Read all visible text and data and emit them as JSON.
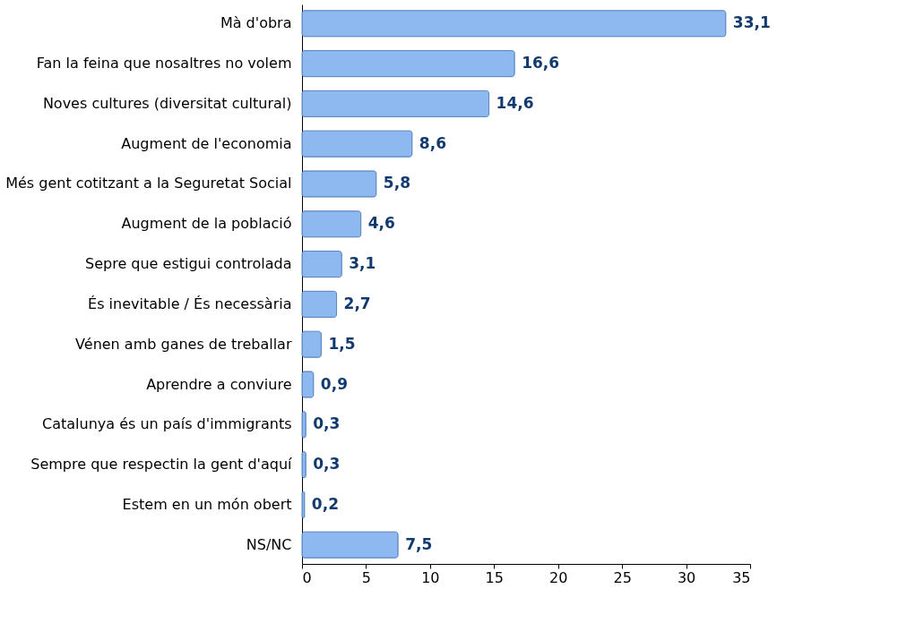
{
  "chart_data": {
    "type": "bar",
    "orientation": "horizontal",
    "categories": [
      "Mà d'obra",
      "Fan la feina que nosaltres no volem",
      "Noves cultures (diversitat cultural)",
      "Augment de l'economia",
      "Més gent cotitzant a la Seguretat Social",
      "Augment de la població",
      "Sepre que estigui controlada",
      "És inevitable / És necessària",
      "Vénen amb ganes de treballar",
      "Aprendre a conviure",
      "Catalunya és un país d'immigrants",
      "Sempre que respectin la gent d'aquí",
      "Estem en un món obert",
      "NS/NC"
    ],
    "values": [
      33.1,
      16.6,
      14.6,
      8.6,
      5.8,
      4.6,
      3.1,
      2.7,
      1.5,
      0.9,
      0.3,
      0.3,
      0.2,
      7.5
    ],
    "color": "#8db8f0",
    "xlim": [
      0,
      35
    ],
    "xticks": [
      0,
      5,
      10,
      15,
      20,
      25,
      30,
      35
    ],
    "value_labels": [
      "33,1",
      "16,6",
      "14,6",
      "8,6",
      "5,8",
      "4,6",
      "3,1",
      "2,7",
      "1,5",
      "0,9",
      "0,3",
      "0,3",
      "0,2",
      "7,5"
    ],
    "grid": false
  }
}
